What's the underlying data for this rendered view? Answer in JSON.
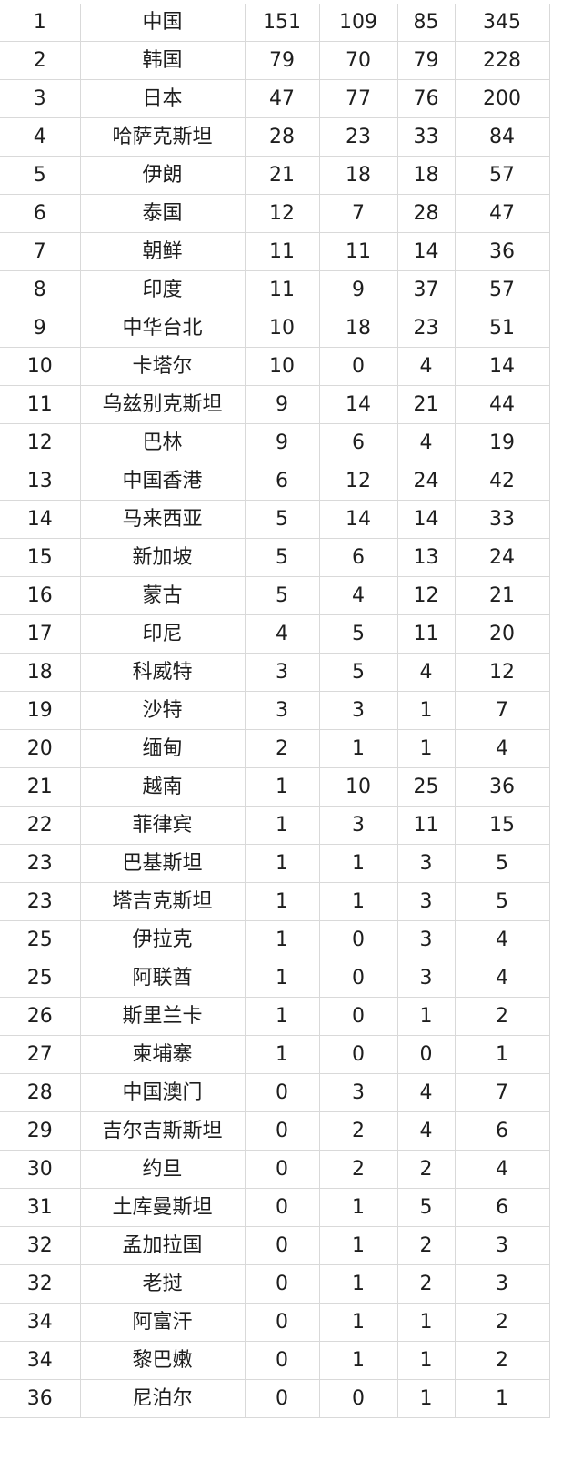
{
  "medal_table": {
    "rows": [
      {
        "rank": "1",
        "country": "中国",
        "gold": "151",
        "silver": "109",
        "bronze": "85",
        "total": "345"
      },
      {
        "rank": "2",
        "country": "韩国",
        "gold": "79",
        "silver": "70",
        "bronze": "79",
        "total": "228"
      },
      {
        "rank": "3",
        "country": "日本",
        "gold": "47",
        "silver": "77",
        "bronze": "76",
        "total": "200"
      },
      {
        "rank": "4",
        "country": "哈萨克斯坦",
        "gold": "28",
        "silver": "23",
        "bronze": "33",
        "total": "84"
      },
      {
        "rank": "5",
        "country": "伊朗",
        "gold": "21",
        "silver": "18",
        "bronze": "18",
        "total": "57"
      },
      {
        "rank": "6",
        "country": "泰国",
        "gold": "12",
        "silver": "7",
        "bronze": "28",
        "total": "47"
      },
      {
        "rank": "7",
        "country": "朝鲜",
        "gold": "11",
        "silver": "11",
        "bronze": "14",
        "total": "36"
      },
      {
        "rank": "8",
        "country": "印度",
        "gold": "11",
        "silver": "9",
        "bronze": "37",
        "total": "57"
      },
      {
        "rank": "9",
        "country": "中华台北",
        "gold": "10",
        "silver": "18",
        "bronze": "23",
        "total": "51"
      },
      {
        "rank": "10",
        "country": "卡塔尔",
        "gold": "10",
        "silver": "0",
        "bronze": "4",
        "total": "14"
      },
      {
        "rank": "11",
        "country": "乌兹别克斯坦",
        "gold": "9",
        "silver": "14",
        "bronze": "21",
        "total": "44"
      },
      {
        "rank": "12",
        "country": "巴林",
        "gold": "9",
        "silver": "6",
        "bronze": "4",
        "total": "19"
      },
      {
        "rank": "13",
        "country": "中国香港",
        "gold": "6",
        "silver": "12",
        "bronze": "24",
        "total": "42"
      },
      {
        "rank": "14",
        "country": "马来西亚",
        "gold": "5",
        "silver": "14",
        "bronze": "14",
        "total": "33"
      },
      {
        "rank": "15",
        "country": "新加坡",
        "gold": "5",
        "silver": "6",
        "bronze": "13",
        "total": "24"
      },
      {
        "rank": "16",
        "country": "蒙古",
        "gold": "5",
        "silver": "4",
        "bronze": "12",
        "total": "21"
      },
      {
        "rank": "17",
        "country": "印尼",
        "gold": "4",
        "silver": "5",
        "bronze": "11",
        "total": "20"
      },
      {
        "rank": "18",
        "country": "科威特",
        "gold": "3",
        "silver": "5",
        "bronze": "4",
        "total": "12"
      },
      {
        "rank": "19",
        "country": "沙特",
        "gold": "3",
        "silver": "3",
        "bronze": "1",
        "total": "7"
      },
      {
        "rank": "20",
        "country": "缅甸",
        "gold": "2",
        "silver": "1",
        "bronze": "1",
        "total": "4"
      },
      {
        "rank": "21",
        "country": "越南",
        "gold": "1",
        "silver": "10",
        "bronze": "25",
        "total": "36"
      },
      {
        "rank": "22",
        "country": "菲律宾",
        "gold": "1",
        "silver": "3",
        "bronze": "11",
        "total": "15"
      },
      {
        "rank": "23",
        "country": "巴基斯坦",
        "gold": "1",
        "silver": "1",
        "bronze": "3",
        "total": "5"
      },
      {
        "rank": "23",
        "country": "塔吉克斯坦",
        "gold": "1",
        "silver": "1",
        "bronze": "3",
        "total": "5"
      },
      {
        "rank": "25",
        "country": "伊拉克",
        "gold": "1",
        "silver": "0",
        "bronze": "3",
        "total": "4"
      },
      {
        "rank": "25",
        "country": "阿联酋",
        "gold": "1",
        "silver": "0",
        "bronze": "3",
        "total": "4"
      },
      {
        "rank": "26",
        "country": "斯里兰卡",
        "gold": "1",
        "silver": "0",
        "bronze": "1",
        "total": "2"
      },
      {
        "rank": "27",
        "country": "柬埔寨",
        "gold": "1",
        "silver": "0",
        "bronze": "0",
        "total": "1"
      },
      {
        "rank": "28",
        "country": "中国澳门",
        "gold": "0",
        "silver": "3",
        "bronze": "4",
        "total": "7"
      },
      {
        "rank": "29",
        "country": "吉尔吉斯斯坦",
        "gold": "0",
        "silver": "2",
        "bronze": "4",
        "total": "6"
      },
      {
        "rank": "30",
        "country": "约旦",
        "gold": "0",
        "silver": "2",
        "bronze": "2",
        "total": "4"
      },
      {
        "rank": "31",
        "country": "土库曼斯坦",
        "gold": "0",
        "silver": "1",
        "bronze": "5",
        "total": "6"
      },
      {
        "rank": "32",
        "country": "孟加拉国",
        "gold": "0",
        "silver": "1",
        "bronze": "2",
        "total": "3"
      },
      {
        "rank": "32",
        "country": "老挝",
        "gold": "0",
        "silver": "1",
        "bronze": "2",
        "total": "3"
      },
      {
        "rank": "34",
        "country": "阿富汗",
        "gold": "0",
        "silver": "1",
        "bronze": "1",
        "total": "2"
      },
      {
        "rank": "34",
        "country": "黎巴嫩",
        "gold": "0",
        "silver": "1",
        "bronze": "1",
        "total": "2"
      },
      {
        "rank": "36",
        "country": "尼泊尔",
        "gold": "0",
        "silver": "0",
        "bronze": "1",
        "total": "1"
      }
    ]
  }
}
